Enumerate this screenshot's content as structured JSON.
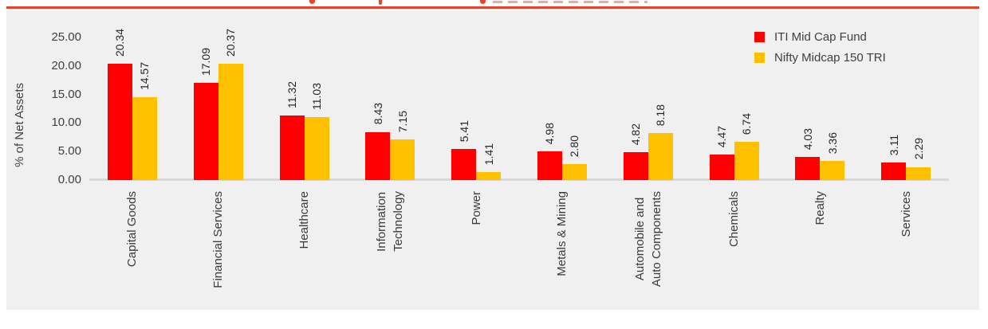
{
  "header": {
    "rule_color": "#E8432D",
    "remnant_dash_color": "#F0A79F"
  },
  "chart_data": {
    "type": "bar",
    "categories": [
      "Capital Goods",
      "Financial Services",
      "Healthcare",
      "Information\nTechnology",
      "Power",
      "Metals & Mining",
      "Automobile and\nAuto Components",
      "Chemicals",
      "Realty",
      "Services"
    ],
    "series": [
      {
        "name": "ITI Mid Cap Fund",
        "color": "#FF0000",
        "values": [
          20.34,
          17.09,
          11.32,
          8.43,
          5.41,
          4.98,
          4.82,
          4.47,
          4.03,
          3.11
        ]
      },
      {
        "name": "Nifty Midcap 150 TRI",
        "color": "#FFC000",
        "values": [
          14.57,
          20.37,
          11.03,
          7.15,
          1.41,
          2.8,
          8.18,
          6.74,
          3.36,
          2.29
        ]
      }
    ],
    "ylabel": "% of Net Assets",
    "xlabel": "",
    "ylim": [
      0,
      25
    ],
    "ytick_labels": [
      "0.00",
      "5.00",
      "10.00",
      "15.00",
      "20.00",
      "25.00"
    ],
    "grid": false,
    "legend_position": "top-right",
    "value_label_format": "0.00",
    "value_label_rotation": 90,
    "category_label_rotation": 90,
    "plot_background": "#F0F0F0",
    "baseline_color": "#D9D9D9"
  }
}
